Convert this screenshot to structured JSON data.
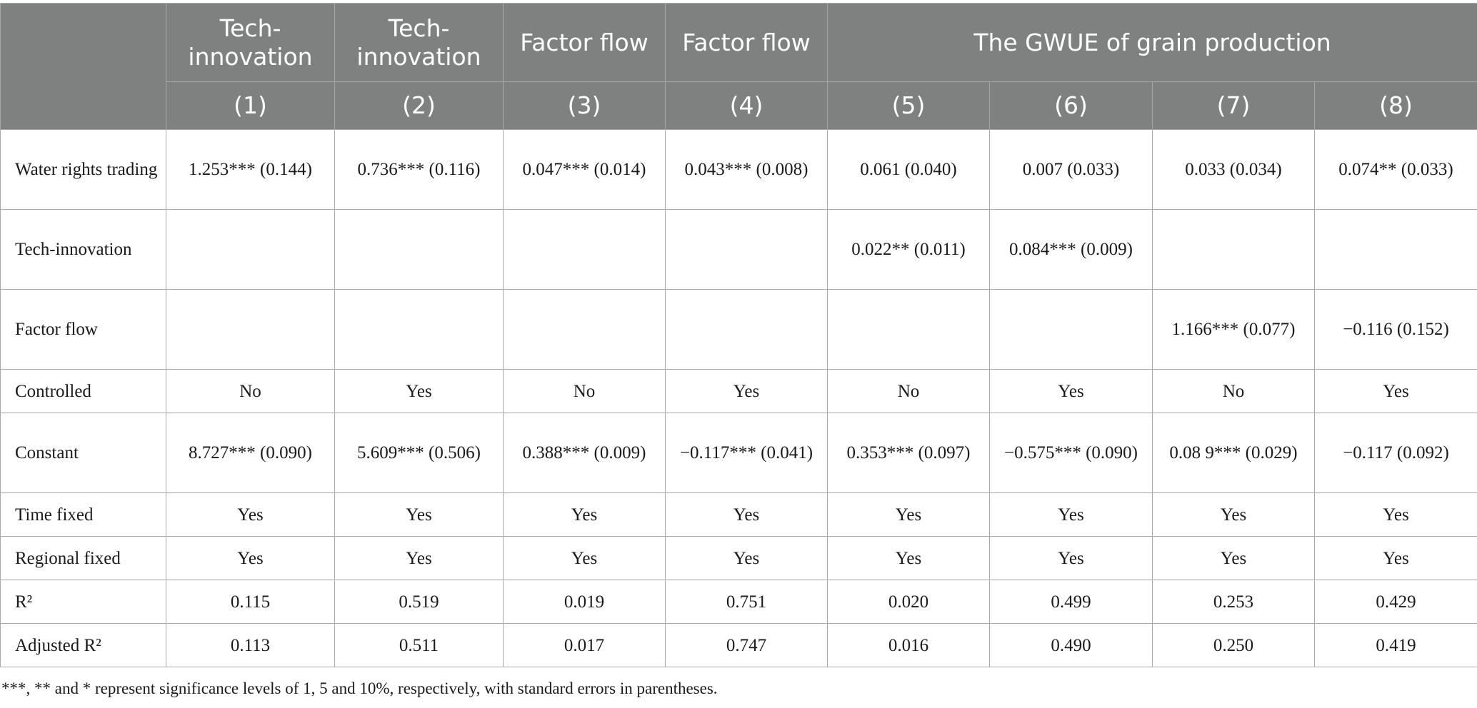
{
  "header": {
    "col1": "Tech-innovation",
    "col2": "Tech-innovation",
    "col3": "Factor flow",
    "col4": "Factor flow",
    "group": "The GWUE of grain production",
    "model_numbers": [
      "(1)",
      "(2)",
      "(3)",
      "(4)",
      "(5)",
      "(6)",
      "(7)",
      "(8)"
    ]
  },
  "rows": [
    {
      "label": "Water rights trading",
      "cells": [
        "1.253*** (0.144)",
        "0.736*** (0.116)",
        "0.047*** (0.014)",
        "0.043*** (0.008)",
        "0.061 (0.040)",
        "0.007 (0.033)",
        "0.033 (0.034)",
        "0.074** (0.033)"
      ]
    },
    {
      "label": "Tech-innovation",
      "cells": [
        "",
        "",
        "",
        "",
        "0.022** (0.011)",
        "0.084*** (0.009)",
        "",
        ""
      ]
    },
    {
      "label": "Factor flow",
      "cells": [
        "",
        "",
        "",
        "",
        "",
        "",
        "1.166*** (0.077)",
        "−0.116 (0.152)"
      ]
    },
    {
      "label": "Controlled",
      "cells": [
        "No",
        "Yes",
        "No",
        "Yes",
        "No",
        "Yes",
        "No",
        "Yes"
      ]
    },
    {
      "label": "Constant",
      "cells": [
        "8.727*** (0.090)",
        "5.609*** (0.506)",
        "0.388*** (0.009)",
        "−0.117*** (0.041)",
        "0.353*** (0.097)",
        "−0.575*** (0.090)",
        "0.08 9*** (0.029)",
        "−0.117 (0.092)"
      ]
    },
    {
      "label": "Time fixed",
      "cells": [
        "Yes",
        "Yes",
        "Yes",
        "Yes",
        "Yes",
        "Yes",
        "Yes",
        "Yes"
      ]
    },
    {
      "label": "Regional fixed",
      "cells": [
        "Yes",
        "Yes",
        "Yes",
        "Yes",
        "Yes",
        "Yes",
        "Yes",
        "Yes"
      ]
    },
    {
      "label": "R²",
      "cells": [
        "0.115",
        "0.519",
        "0.019",
        "0.751",
        "0.020",
        "0.499",
        "0.253",
        "0.429"
      ]
    },
    {
      "label": "Adjusted R²",
      "cells": [
        "0.113",
        "0.511",
        "0.017",
        "0.747",
        "0.016",
        "0.490",
        "0.250",
        "0.419"
      ]
    }
  ],
  "footnote": "***, ** and * represent significance levels of 1, 5 and 10%, respectively, with standard errors in parentheses.",
  "colors": {
    "header_bg": "#7f8180",
    "header_text": "#ffffff",
    "grid": "#a7a9ac"
  }
}
